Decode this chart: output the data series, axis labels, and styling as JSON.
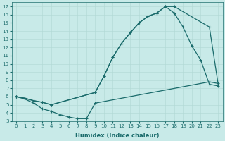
{
  "xlabel": "Humidex (Indice chaleur)",
  "bg_color": "#c8eae8",
  "line_color": "#1a6b6b",
  "grid_color": "#b0d8d4",
  "xlim": [
    -0.5,
    23.5
  ],
  "ylim": [
    3,
    17.5
  ],
  "yticks": [
    3,
    4,
    5,
    6,
    7,
    8,
    9,
    10,
    11,
    12,
    13,
    14,
    15,
    16,
    17
  ],
  "xticks": [
    0,
    1,
    2,
    3,
    4,
    5,
    6,
    7,
    8,
    9,
    10,
    11,
    12,
    13,
    14,
    15,
    16,
    17,
    18,
    19,
    20,
    21,
    22,
    23
  ],
  "line1_x": [
    0,
    1,
    2,
    3,
    4,
    9,
    10,
    11,
    12,
    13,
    14,
    15,
    16,
    17,
    18,
    22,
    23
  ],
  "line1_y": [
    6,
    5.8,
    5.5,
    5.3,
    5.0,
    6.5,
    8.5,
    10.8,
    12.5,
    13.8,
    15.0,
    15.8,
    16.2,
    17.0,
    17.0,
    14.5,
    7.5
  ],
  "line2_x": [
    0,
    1,
    2,
    3,
    4,
    9,
    10,
    11,
    12,
    13,
    14,
    15,
    16,
    17,
    18,
    19,
    20,
    21,
    22,
    23
  ],
  "line2_y": [
    6,
    5.8,
    5.5,
    5.3,
    5.0,
    6.5,
    8.5,
    10.8,
    12.5,
    13.8,
    15.0,
    15.8,
    16.2,
    17.0,
    16.2,
    14.5,
    12.2,
    10.5,
    7.5,
    7.3
  ],
  "line3_x": [
    0,
    1,
    2,
    3,
    4,
    5,
    6,
    7,
    8,
    9,
    22,
    23
  ],
  "line3_y": [
    6,
    5.7,
    5.2,
    4.5,
    4.2,
    3.8,
    3.5,
    3.3,
    3.3,
    5.2,
    7.8,
    7.6
  ],
  "marker": "+",
  "markersize": 3,
  "linewidth": 0.9,
  "fontsize_label": 6,
  "fontsize_tick": 5
}
